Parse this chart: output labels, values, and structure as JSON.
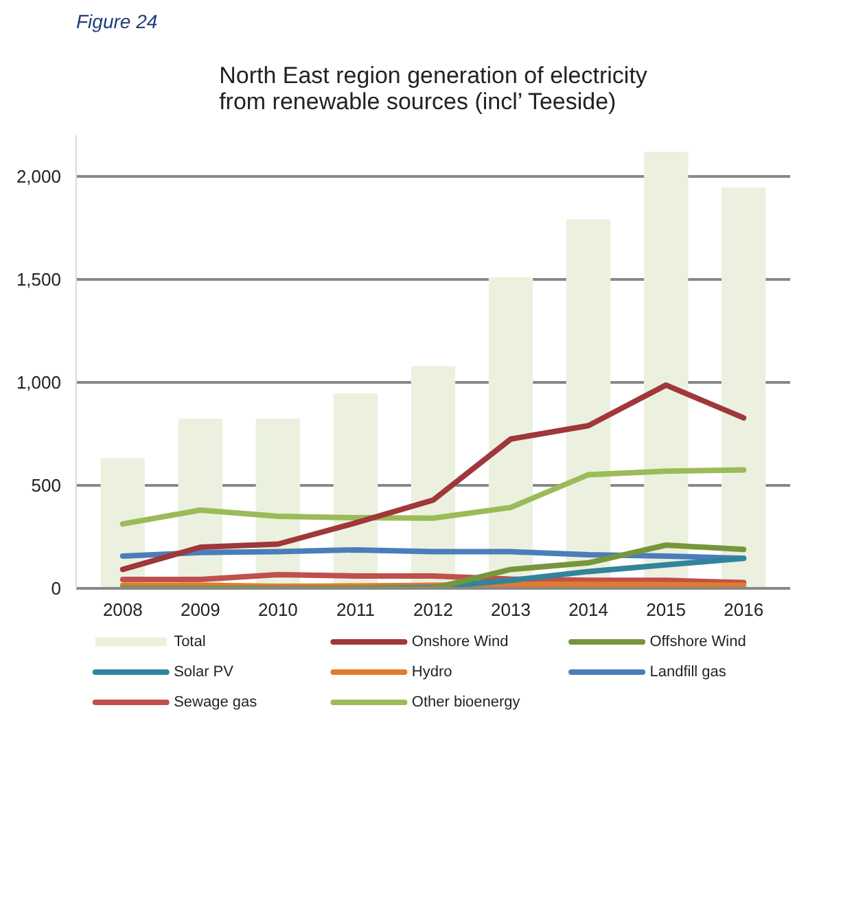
{
  "chart_data": {
    "type": "line",
    "title": "North East region generation of electricity  from renewable sources (incl’ Teeside)",
    "annotations": [
      "Figure 24"
    ],
    "categories": [
      "2008",
      "2009",
      "2010",
      "2011",
      "2012",
      "2013",
      "2014",
      "2015",
      "2016"
    ],
    "series": [
      {
        "name": "Total",
        "type": "bar",
        "color": "#ebf1de",
        "values": [
          633,
          824,
          824,
          946,
          1079,
          1511,
          1792,
          2120,
          1946
        ]
      },
      {
        "name": "Onshore Wind",
        "color": "#a0373a",
        "values": [
          92,
          200,
          215,
          318,
          429,
          725,
          790,
          987,
          828
        ]
      },
      {
        "name": "Offshore Wind",
        "color": "#77963c",
        "values": [
          0,
          0,
          0,
          0,
          0,
          92,
          124,
          210,
          189
        ]
      },
      {
        "name": "Solar PV",
        "color": "#31849b",
        "values": [
          null,
          null,
          0,
          0,
          5,
          39,
          82,
          114,
          146
        ]
      },
      {
        "name": "Hydro",
        "color": "#e07b2e",
        "values": [
          15,
          15,
          10,
          12,
          15,
          20,
          20,
          18,
          15
        ]
      },
      {
        "name": "Landfill gas",
        "color": "#4a7ebb",
        "values": [
          157,
          174,
          178,
          187,
          178,
          178,
          163,
          157,
          146
        ]
      },
      {
        "name": "Sewage gas",
        "color": "#c0504d",
        "values": [
          43,
          43,
          67,
          60,
          60,
          45,
          39,
          39,
          28
        ]
      },
      {
        "name": "Other bioenergy",
        "color": "#9bbb59",
        "values": [
          313,
          380,
          350,
          343,
          341,
          393,
          552,
          569,
          575
        ]
      }
    ],
    "ylim": [
      0,
      2200
    ],
    "yticks": [
      0,
      {
        "value": 500,
        "label": "500"
      },
      {
        "value": 1000,
        "label": "1,000"
      },
      {
        "value": 1500,
        "label": "1,500"
      },
      {
        "value": 2000,
        "label": "2,000"
      }
    ],
    "grid": "y",
    "legend": "bottom",
    "line_style": "solid"
  }
}
